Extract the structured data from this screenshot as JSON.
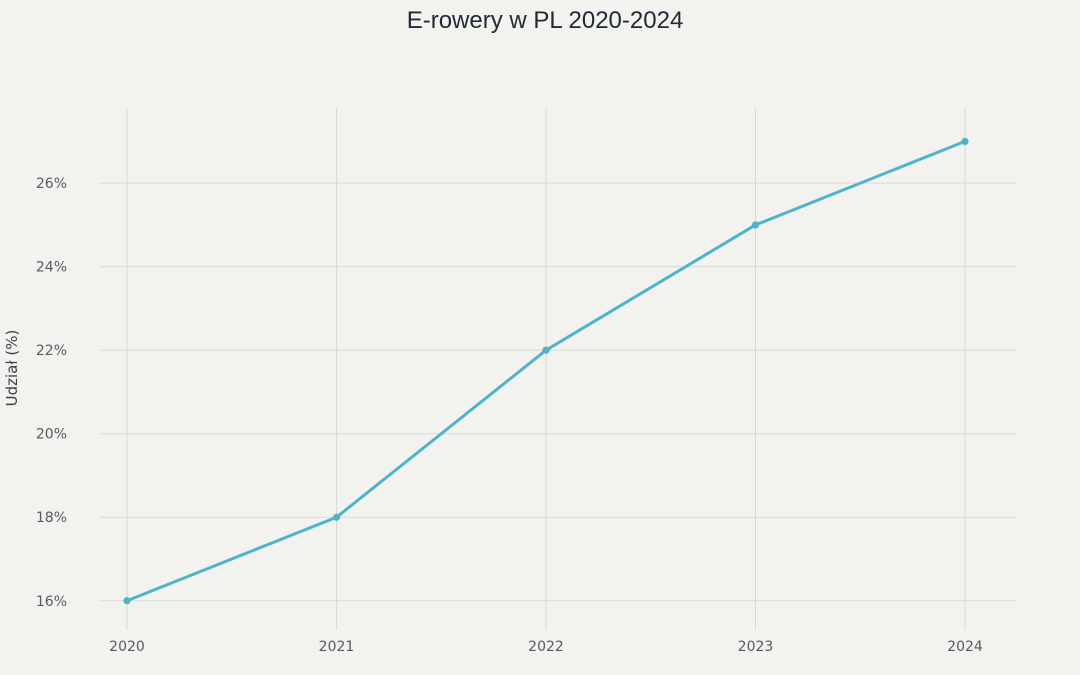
{
  "chart_data": {
    "type": "line",
    "title": "E-rowery w PL 2020-2024",
    "xlabel": "",
    "ylabel": "Udział (%)",
    "categories": [
      "2020",
      "2021",
      "2022",
      "2023",
      "2024"
    ],
    "series": [
      {
        "name": "Udział",
        "values": [
          16,
          18,
          22,
          25,
          27
        ]
      }
    ],
    "ylim": [
      15.3,
      27.8
    ],
    "yticks": [
      16,
      18,
      20,
      22,
      24,
      26
    ],
    "ytick_labels": [
      "16%",
      "18%",
      "20%",
      "22%",
      "24%",
      "26%"
    ],
    "grid": true,
    "colors": {
      "line": "#4fb3c9",
      "marker": "#4fb3c9",
      "grid": "#d9d9d4",
      "background": "#f2f2ee"
    }
  }
}
